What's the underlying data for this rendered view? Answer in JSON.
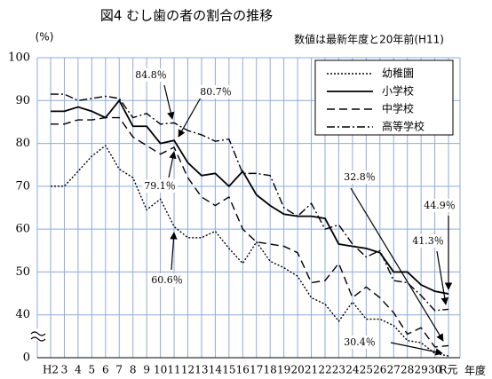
{
  "chart_data": {
    "type": "line",
    "title": "図4 むし歯の者の割合の推移",
    "subtitle": "数値は最新年度と20年前(H11)",
    "y_label": "(%)",
    "x_label": "年度",
    "categories": [
      "H2",
      "3",
      "4",
      "5",
      "6",
      "7",
      "8",
      "9",
      "10",
      "11",
      "12",
      "13",
      "14",
      "15",
      "16",
      "17",
      "18",
      "19",
      "20",
      "21",
      "22",
      "23",
      "24",
      "25",
      "26",
      "27",
      "28",
      "29",
      "30",
      "R元"
    ],
    "series": [
      {
        "name": "幼稚園",
        "color": "#000000",
        "style": "dotted",
        "values": [
          70,
          70,
          73.5,
          77,
          79.5,
          74,
          72,
          64.5,
          67,
          60.6,
          58,
          58,
          59.5,
          55.5,
          52,
          57,
          52.5,
          51,
          49,
          44,
          42.5,
          38.5,
          43,
          39,
          39,
          37.5,
          34,
          33.5,
          31,
          30.4
        ]
      },
      {
        "name": "小学校",
        "color": "#000000",
        "style": "solid",
        "values": [
          87.5,
          87.5,
          88.5,
          87.5,
          86,
          90,
          84,
          84,
          80,
          80.7,
          75.5,
          72.5,
          73,
          70,
          73.5,
          68,
          65.5,
          63.5,
          63,
          63,
          62.5,
          56.5,
          56,
          55.5,
          54.5,
          50,
          50,
          47,
          45.5,
          44.9
        ]
      },
      {
        "name": "中学校",
        "color": "#000000",
        "style": "dashed",
        "values": [
          84.5,
          84.5,
          85.5,
          85.5,
          86,
          86,
          81.5,
          79.5,
          77.5,
          79.1,
          72,
          67.5,
          65.5,
          67.5,
          60,
          57,
          56.5,
          56,
          54.5,
          47.5,
          48,
          52,
          44,
          46.5,
          44,
          40.5,
          35.5,
          37,
          32.5,
          32.8
        ]
      },
      {
        "name": "高等学校",
        "color": "#000000",
        "style": "dashdot",
        "values": [
          91.5,
          91.5,
          90,
          90.5,
          91,
          90.5,
          86,
          87,
          84.5,
          84.8,
          83,
          82,
          80.5,
          81,
          73,
          73,
          72.5,
          65,
          63,
          66,
          60,
          61,
          56.5,
          53.5,
          55,
          48,
          47.5,
          44.5,
          41,
          41.3
        ]
      }
    ],
    "annotations": [
      "84.8％",
      "80.7％",
      "79.1％",
      "60.6％",
      "32.8％",
      "44.9％",
      "41.3％",
      "30.4％"
    ],
    "ylim": [
      30,
      100
    ],
    "yticks": [
      {
        "value": 30,
        "label": "0"
      },
      40,
      50,
      60,
      70,
      80,
      90,
      100
    ],
    "grid": true,
    "legend": "upper right"
  }
}
